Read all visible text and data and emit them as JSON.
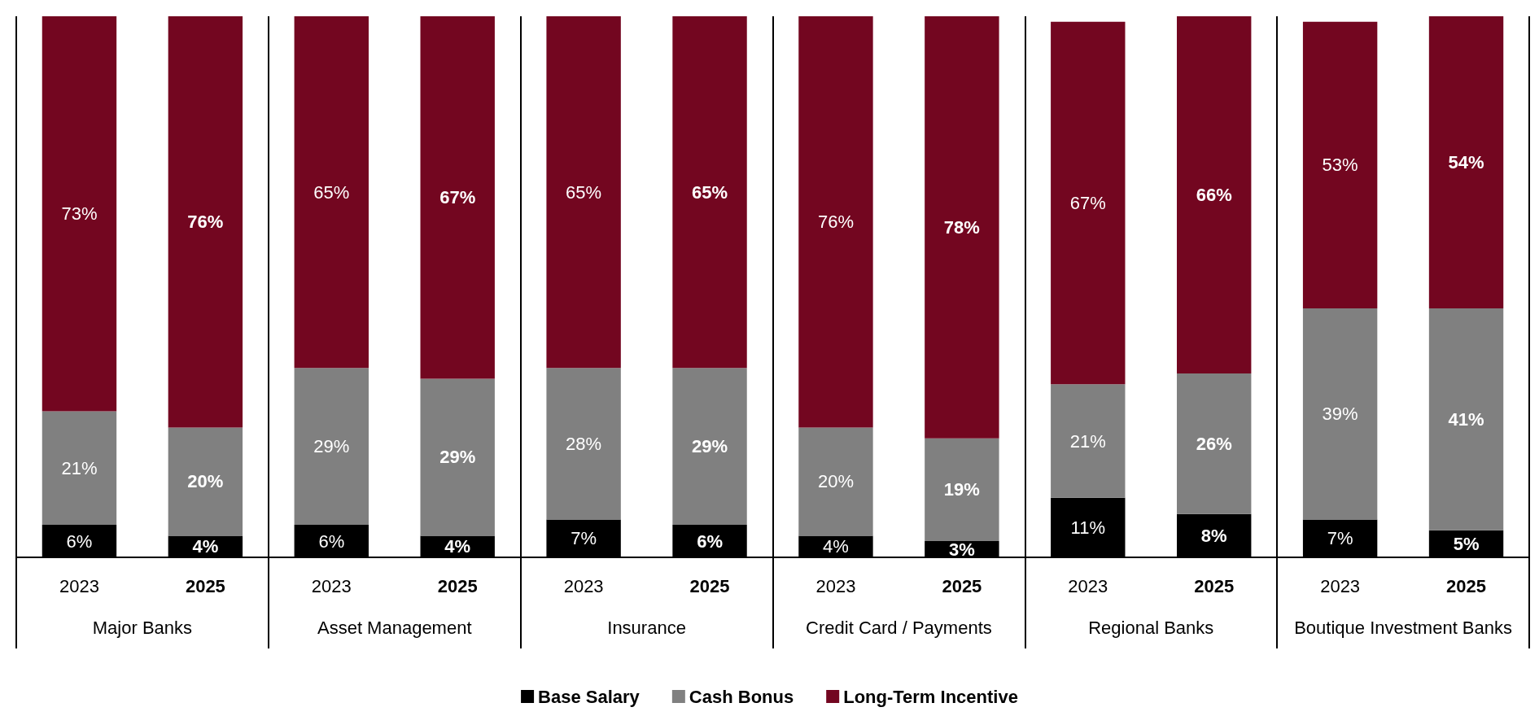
{
  "chart_data": {
    "type": "bar",
    "stacked": true,
    "legend": "bottom",
    "grid": false,
    "tick_labels": "x",
    "categories": [
      "2023",
      "2025",
      "2023",
      "2025",
      "2023",
      "2025",
      "2023",
      "2025",
      "2023",
      "2025",
      "2023",
      "2025"
    ],
    "annotations": [
      "Major Banks",
      "Asset Management",
      "Insurance",
      "Credit Card / Payments",
      "Regional Banks",
      "Boutique Investment Banks"
    ],
    "series": [
      {
        "name": "Base Salary",
        "color": "#000000",
        "values": [
          6,
          4,
          6,
          4,
          7,
          6,
          4,
          3,
          11,
          8,
          7,
          5
        ],
        "value_labels": [
          "6%",
          "4%",
          "6%",
          "4%",
          "7%",
          "6%",
          "4%",
          "3%",
          "11%",
          "8%",
          "7%",
          "5%"
        ]
      },
      {
        "name": "Cash Bonus",
        "color": "#808080",
        "values": [
          21,
          20,
          29,
          29,
          28,
          29,
          20,
          19,
          21,
          26,
          39,
          41
        ],
        "value_labels": [
          "21%",
          "20%",
          "29%",
          "29%",
          "28%",
          "29%",
          "20%",
          "19%",
          "21%",
          "26%",
          "39%",
          "41%"
        ]
      },
      {
        "name": "Long-Term Incentive",
        "color": "#730620",
        "values": [
          73,
          76,
          65,
          67,
          65,
          65,
          76,
          78,
          67,
          66,
          53,
          54
        ],
        "value_labels": [
          "73%",
          "76%",
          "65%",
          "67%",
          "65%",
          "65%",
          "76%",
          "78%",
          "67%",
          "66%",
          "53%",
          "54%"
        ]
      }
    ]
  }
}
